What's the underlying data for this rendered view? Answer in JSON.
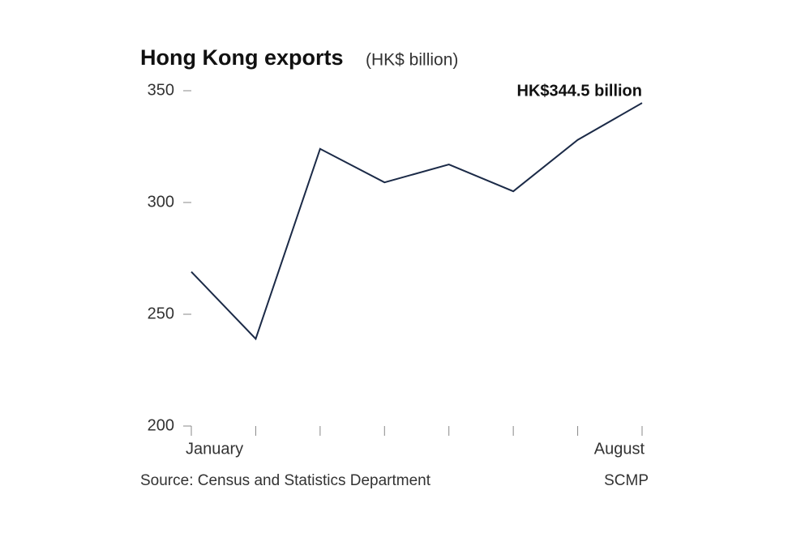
{
  "chart_data": {
    "type": "line",
    "title": "Hong Kong exports",
    "subtitle": "(HK$ billion)",
    "categories": [
      "January",
      null,
      null,
      null,
      null,
      null,
      null,
      "August"
    ],
    "series": [
      {
        "name": "Exports",
        "color": "#1b2a47",
        "values": [
          269,
          239,
          324,
          309,
          317,
          305,
          328,
          344.5
        ]
      }
    ],
    "annotation": "HK$344.5 billion",
    "ylim": [
      200,
      350
    ],
    "yticks": [
      200,
      250,
      300,
      350
    ],
    "source": "Source: Census and Statistics Department",
    "credit": "SCMP"
  }
}
